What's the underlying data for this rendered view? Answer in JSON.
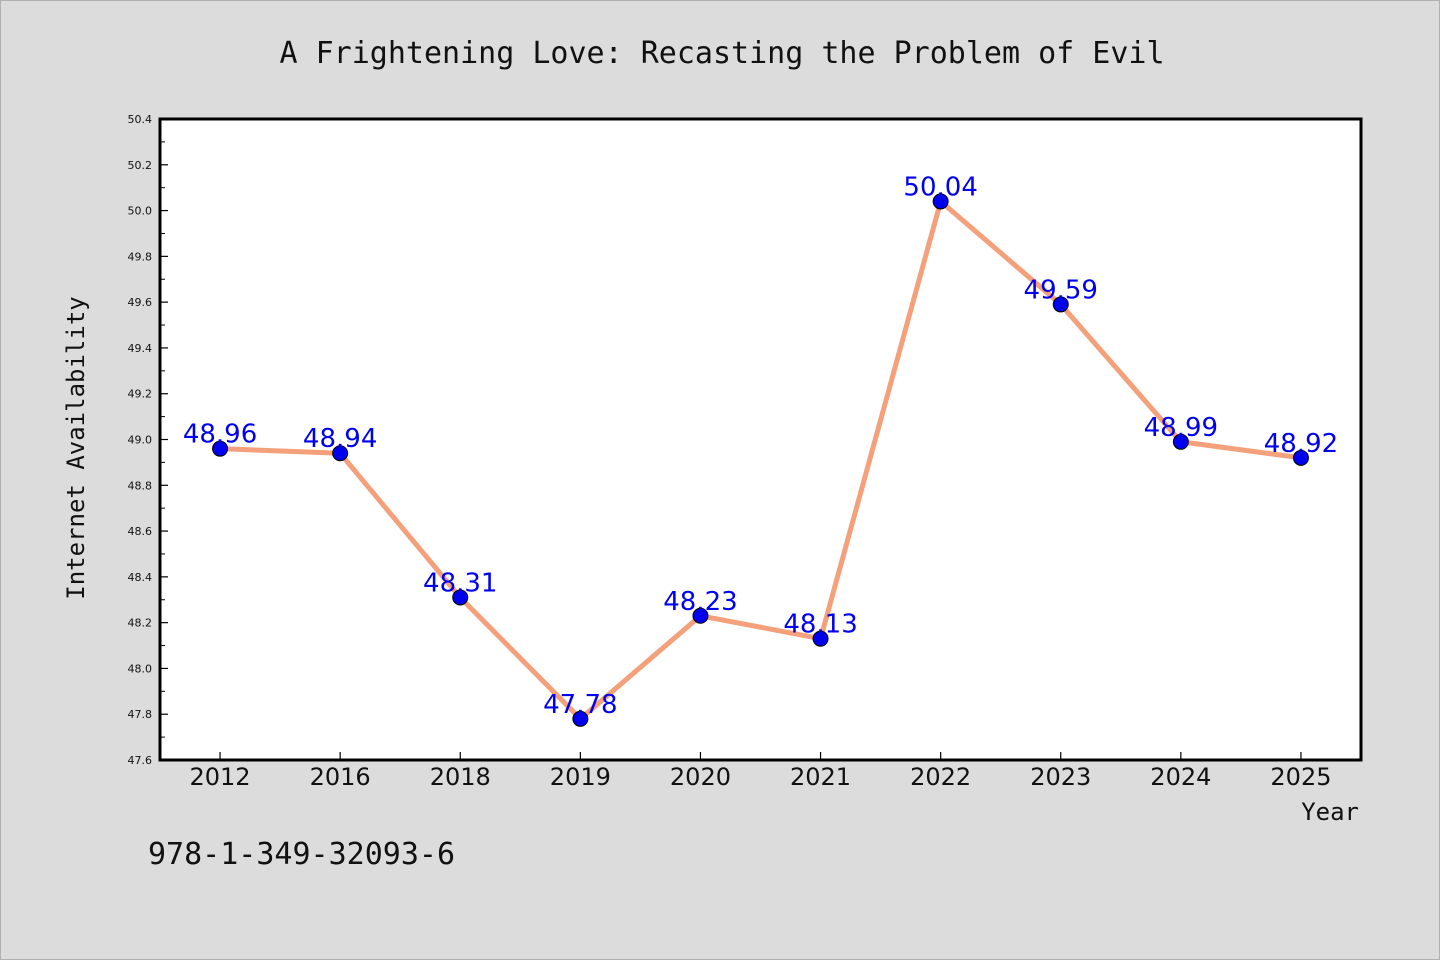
{
  "chart_data": {
    "type": "line",
    "title": "A Frightening Love: Recasting the Problem of Evil",
    "xlabel": "Year",
    "ylabel": "Internet Availability",
    "categories": [
      "2012",
      "2016",
      "2018",
      "2019",
      "2020",
      "2021",
      "2022",
      "2023",
      "2024",
      "2025"
    ],
    "values": [
      48.96,
      48.94,
      48.31,
      47.78,
      48.23,
      48.13,
      50.04,
      49.59,
      48.99,
      48.92
    ],
    "data_labels": [
      "48.96",
      "48.94",
      "48.31",
      "47.78",
      "48.23",
      "48.13",
      "50.04",
      "49.59",
      "48.99",
      "48.92"
    ],
    "ylim": [
      47.6,
      50.4
    ],
    "yticks": [
      "47.6",
      "47.8",
      "48.0",
      "48.2",
      "48.4",
      "48.6",
      "48.8",
      "49.0",
      "49.2",
      "49.4",
      "49.6",
      "49.8",
      "50.0",
      "50.2",
      "50.4"
    ],
    "grid": false,
    "line_color": "#f4a07a",
    "marker_color": "#0000ee",
    "label_color": "#0000ee",
    "background_color": "#dcdcdc",
    "plot_background": "#ffffff"
  },
  "footer": {
    "isbn": "978-1-349-32093-6"
  }
}
